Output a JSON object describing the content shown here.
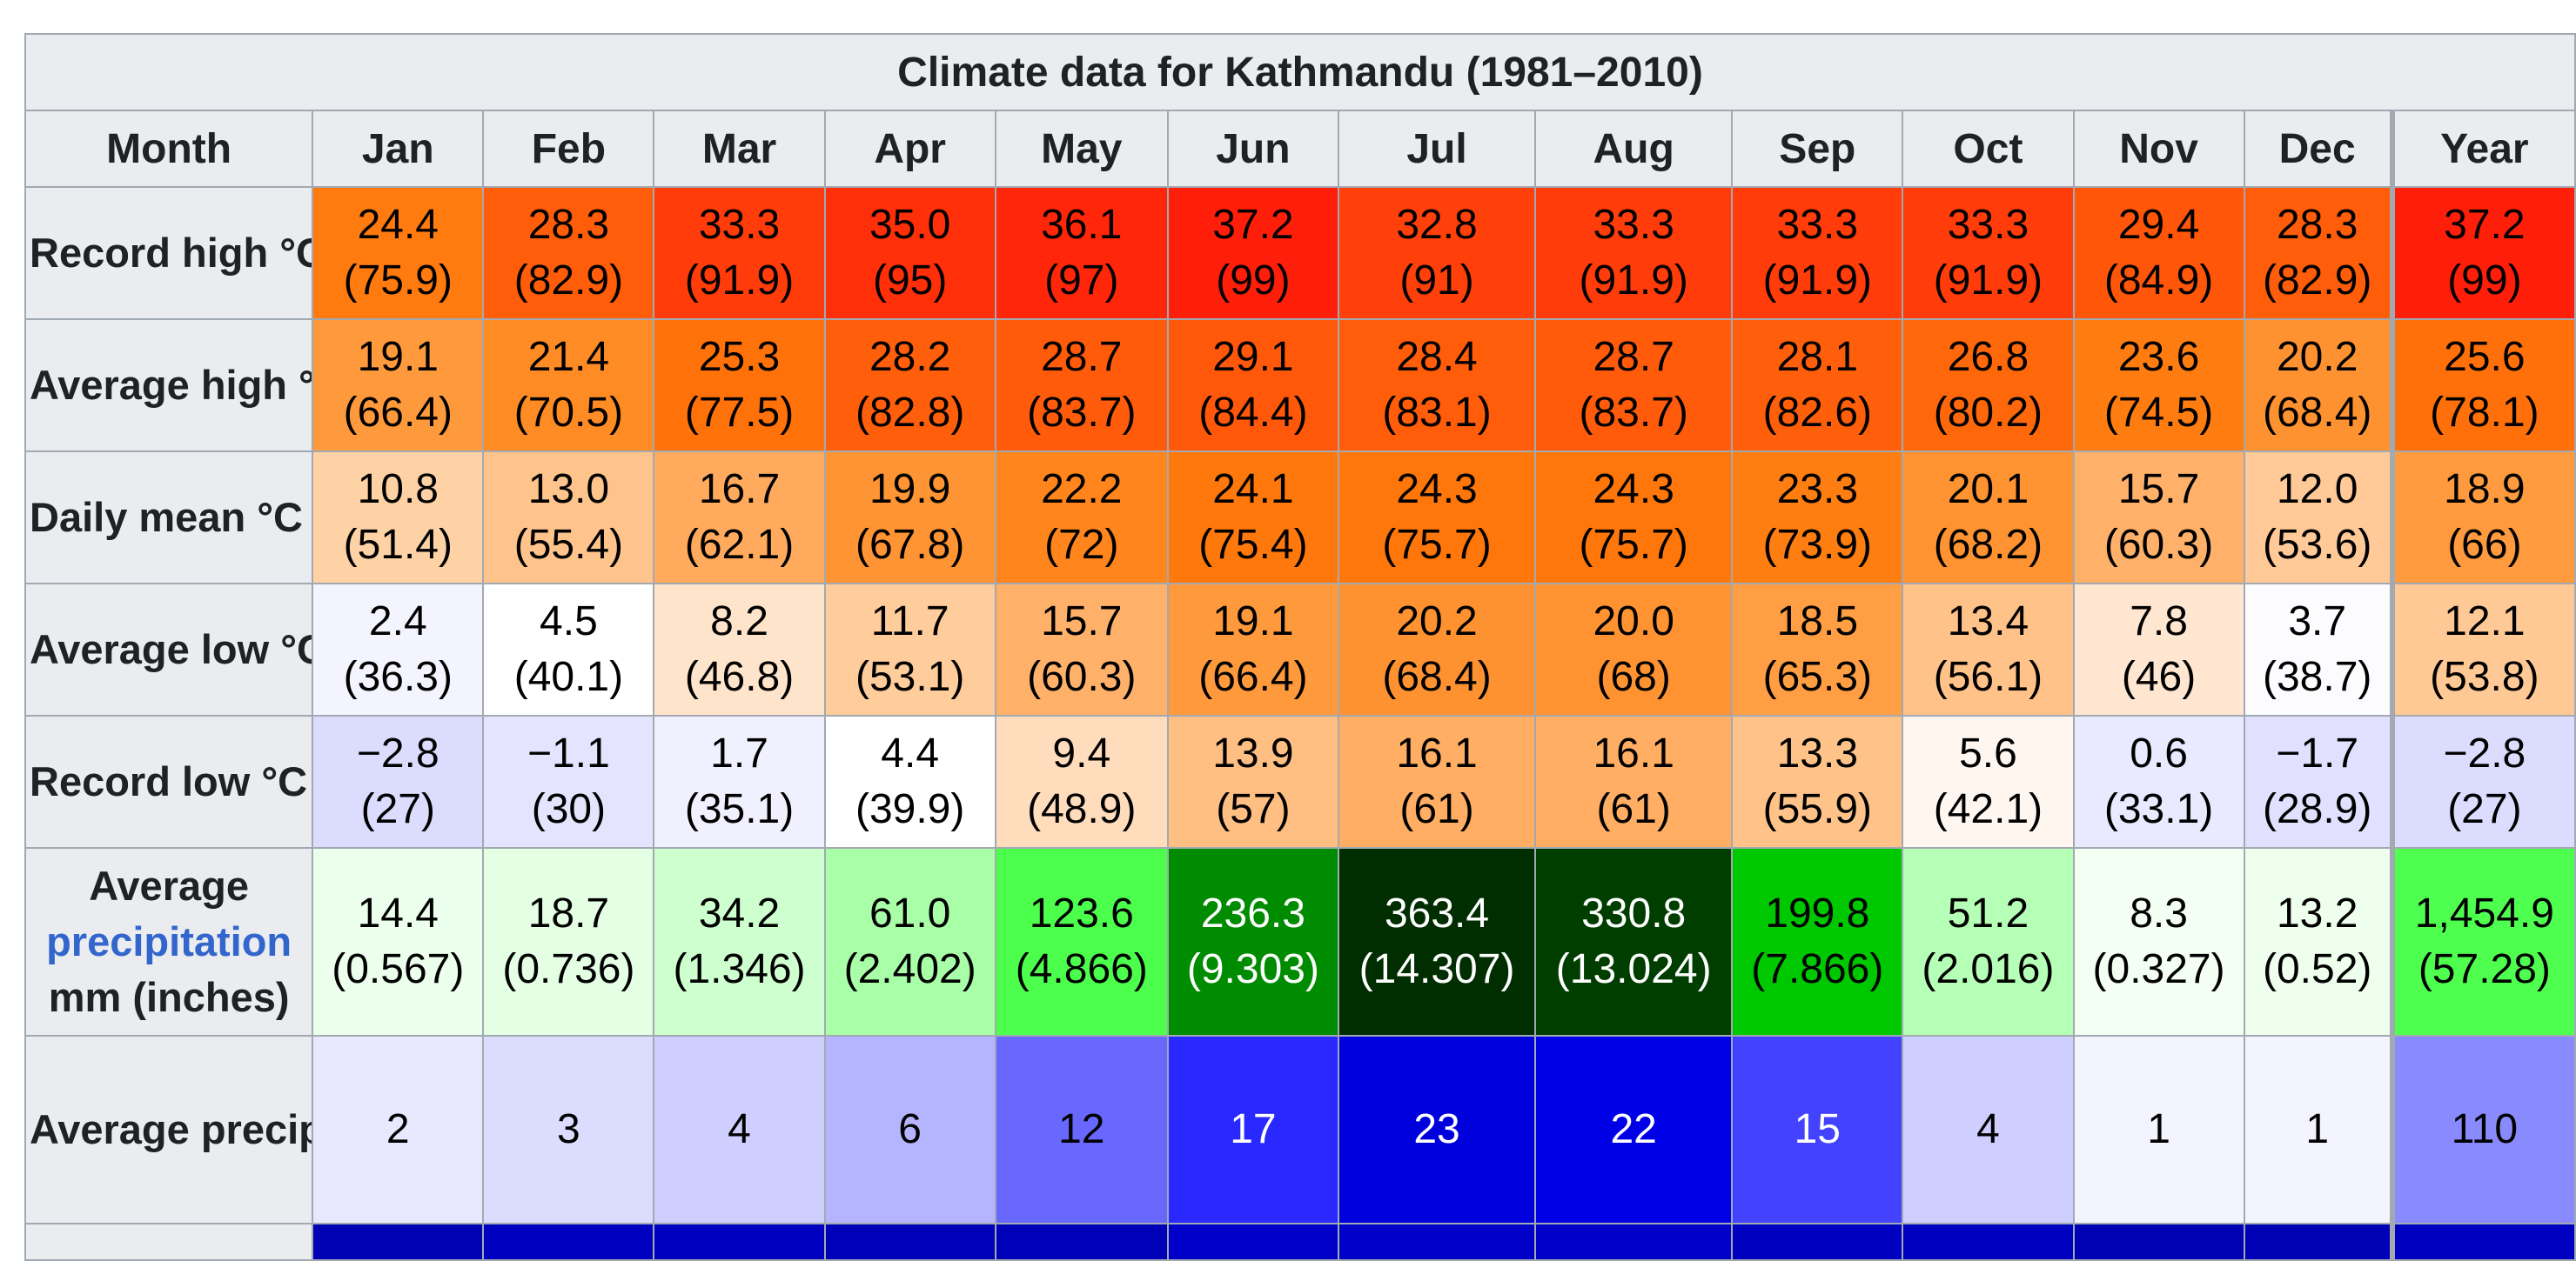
{
  "title": "Climate data for Kathmandu (1981–2010)",
  "header": {
    "month_label": "Month",
    "columns": [
      "Jan",
      "Feb",
      "Mar",
      "Apr",
      "May",
      "Jun",
      "Jul",
      "Aug",
      "Sep",
      "Oct",
      "Nov",
      "Dec",
      "Year"
    ]
  },
  "rows": [
    {
      "label": "Record high °C (°F)",
      "cells": [
        {
          "v": "24.4",
          "s": "(75.9)",
          "bg": "#ff7a0f",
          "fg": "#000000"
        },
        {
          "v": "28.3",
          "s": "(82.9)",
          "bg": "#ff5d0a",
          "fg": "#000000"
        },
        {
          "v": "33.3",
          "s": "(91.9)",
          "bg": "#ff3c0a",
          "fg": "#000000"
        },
        {
          "v": "35.0",
          "s": "(95)",
          "bg": "#ff2f0a",
          "fg": "#000000"
        },
        {
          "v": "36.1",
          "s": "(97)",
          "bg": "#ff260a",
          "fg": "#000000"
        },
        {
          "v": "37.2",
          "s": "(99)",
          "bg": "#ff1e0a",
          "fg": "#000000"
        },
        {
          "v": "32.8",
          "s": "(91)",
          "bg": "#ff400a",
          "fg": "#000000"
        },
        {
          "v": "33.3",
          "s": "(91.9)",
          "bg": "#ff3c0a",
          "fg": "#000000"
        },
        {
          "v": "33.3",
          "s": "(91.9)",
          "bg": "#ff3c0a",
          "fg": "#000000"
        },
        {
          "v": "33.3",
          "s": "(91.9)",
          "bg": "#ff3c0a",
          "fg": "#000000"
        },
        {
          "v": "29.4",
          "s": "(84.9)",
          "bg": "#ff560a",
          "fg": "#000000"
        },
        {
          "v": "28.3",
          "s": "(82.9)",
          "bg": "#ff5d0a",
          "fg": "#000000"
        },
        {
          "v": "37.2",
          "s": "(99)",
          "bg": "#ff1e0a",
          "fg": "#000000"
        }
      ]
    },
    {
      "label": "Average high °C (°F)",
      "cells": [
        {
          "v": "19.1",
          "s": "(66.4)",
          "bg": "#ff9a3c",
          "fg": "#000000"
        },
        {
          "v": "21.4",
          "s": "(70.5)",
          "bg": "#ff8b24",
          "fg": "#000000"
        },
        {
          "v": "25.3",
          "s": "(77.5)",
          "bg": "#ff720a",
          "fg": "#000000"
        },
        {
          "v": "28.2",
          "s": "(82.8)",
          "bg": "#ff5e0a",
          "fg": "#000000"
        },
        {
          "v": "28.7",
          "s": "(83.7)",
          "bg": "#ff5b0a",
          "fg": "#000000"
        },
        {
          "v": "29.1",
          "s": "(84.4)",
          "bg": "#ff580a",
          "fg": "#000000"
        },
        {
          "v": "28.4",
          "s": "(83.1)",
          "bg": "#ff5d0a",
          "fg": "#000000"
        },
        {
          "v": "28.7",
          "s": "(83.7)",
          "bg": "#ff5b0a",
          "fg": "#000000"
        },
        {
          "v": "28.1",
          "s": "(82.6)",
          "bg": "#ff5f0a",
          "fg": "#000000"
        },
        {
          "v": "26.8",
          "s": "(80.2)",
          "bg": "#ff680a",
          "fg": "#000000"
        },
        {
          "v": "23.6",
          "s": "(74.5)",
          "bg": "#ff7d10",
          "fg": "#000000"
        },
        {
          "v": "20.2",
          "s": "(68.4)",
          "bg": "#ff9230",
          "fg": "#000000"
        },
        {
          "v": "25.6",
          "s": "(78.1)",
          "bg": "#ff700a",
          "fg": "#000000"
        }
      ]
    },
    {
      "label": "Daily mean °C (°F)",
      "cells": [
        {
          "v": "10.8",
          "s": "(51.4)",
          "bg": "#ffd2a6",
          "fg": "#000000"
        },
        {
          "v": "13.0",
          "s": "(55.4)",
          "bg": "#ffc48c",
          "fg": "#000000"
        },
        {
          "v": "16.7",
          "s": "(62.1)",
          "bg": "#ffaa5c",
          "fg": "#000000"
        },
        {
          "v": "19.9",
          "s": "(67.8)",
          "bg": "#ff9434",
          "fg": "#000000"
        },
        {
          "v": "22.2",
          "s": "(72)",
          "bg": "#ff851c",
          "fg": "#000000"
        },
        {
          "v": "24.1",
          "s": "(75.4)",
          "bg": "#ff780c",
          "fg": "#000000"
        },
        {
          "v": "24.3",
          "s": "(75.7)",
          "bg": "#ff770b",
          "fg": "#000000"
        },
        {
          "v": "24.3",
          "s": "(75.7)",
          "bg": "#ff770b",
          "fg": "#000000"
        },
        {
          "v": "23.3",
          "s": "(73.9)",
          "bg": "#ff7e12",
          "fg": "#000000"
        },
        {
          "v": "20.1",
          "s": "(68.2)",
          "bg": "#ff9332",
          "fg": "#000000"
        },
        {
          "v": "15.7",
          "s": "(60.3)",
          "bg": "#ffb16a",
          "fg": "#000000"
        },
        {
          "v": "12.0",
          "s": "(53.6)",
          "bg": "#ffca98",
          "fg": "#000000"
        },
        {
          "v": "18.9",
          "s": "(66)",
          "bg": "#ff9b3e",
          "fg": "#000000"
        }
      ]
    },
    {
      "label": "Average low °C (°F)",
      "cells": [
        {
          "v": "2.4",
          "s": "(36.3)",
          "bg": "#f4f4ff",
          "fg": "#000000"
        },
        {
          "v": "4.5",
          "s": "(40.1)",
          "bg": "#ffffff",
          "fg": "#000000"
        },
        {
          "v": "8.2",
          "s": "(46.8)",
          "bg": "#ffe4cc",
          "fg": "#000000"
        },
        {
          "v": "11.7",
          "s": "(53.1)",
          "bg": "#ffcc9c",
          "fg": "#000000"
        },
        {
          "v": "15.7",
          "s": "(60.3)",
          "bg": "#ffb16a",
          "fg": "#000000"
        },
        {
          "v": "19.1",
          "s": "(66.4)",
          "bg": "#ff9a3c",
          "fg": "#000000"
        },
        {
          "v": "20.2",
          "s": "(68.4)",
          "bg": "#ff9230",
          "fg": "#000000"
        },
        {
          "v": "20.0",
          "s": "(68)",
          "bg": "#ff9332",
          "fg": "#000000"
        },
        {
          "v": "18.5",
          "s": "(65.3)",
          "bg": "#ff9e42",
          "fg": "#000000"
        },
        {
          "v": "13.4",
          "s": "(56.1)",
          "bg": "#ffc288",
          "fg": "#000000"
        },
        {
          "v": "7.8",
          "s": "(46)",
          "bg": "#ffe6d0",
          "fg": "#000000"
        },
        {
          "v": "3.7",
          "s": "(38.7)",
          "bg": "#fcfcff",
          "fg": "#000000"
        },
        {
          "v": "12.1",
          "s": "(53.8)",
          "bg": "#ffc996",
          "fg": "#000000"
        }
      ]
    },
    {
      "label": "Record low °C (°F)",
      "cells": [
        {
          "v": "−2.8",
          "s": "(27)",
          "bg": "#dcdcff",
          "fg": "#000000"
        },
        {
          "v": "−1.1",
          "s": "(30)",
          "bg": "#e4e4ff",
          "fg": "#000000"
        },
        {
          "v": "1.7",
          "s": "(35.1)",
          "bg": "#f0f0ff",
          "fg": "#000000"
        },
        {
          "v": "4.4",
          "s": "(39.9)",
          "bg": "#ffffff",
          "fg": "#000000"
        },
        {
          "v": "9.4",
          "s": "(48.9)",
          "bg": "#ffdcbc",
          "fg": "#000000"
        },
        {
          "v": "13.9",
          "s": "(57)",
          "bg": "#ffbe82",
          "fg": "#000000"
        },
        {
          "v": "16.1",
          "s": "(61)",
          "bg": "#ffae64",
          "fg": "#000000"
        },
        {
          "v": "16.1",
          "s": "(61)",
          "bg": "#ffae64",
          "fg": "#000000"
        },
        {
          "v": "13.3",
          "s": "(55.9)",
          "bg": "#ffc38a",
          "fg": "#000000"
        },
        {
          "v": "5.6",
          "s": "(42.1)",
          "bg": "#fff6f0",
          "fg": "#000000"
        },
        {
          "v": "0.6",
          "s": "(33.1)",
          "bg": "#e9e9ff",
          "fg": "#000000"
        },
        {
          "v": "−1.7",
          "s": "(28.9)",
          "bg": "#e1e1ff",
          "fg": "#000000"
        },
        {
          "v": "−2.8",
          "s": "(27)",
          "bg": "#dcdcff",
          "fg": "#000000"
        }
      ]
    },
    {
      "label_top": "Average",
      "label_link": "precipitation",
      "label_bottom": "mm (inches)",
      "cells": [
        {
          "v": "14.4",
          "s": "(0.567)",
          "bg": "#ecffec",
          "fg": "#000000"
        },
        {
          "v": "18.7",
          "s": "(0.736)",
          "bg": "#e4ffe4",
          "fg": "#000000"
        },
        {
          "v": "34.2",
          "s": "(1.346)",
          "bg": "#ceffce",
          "fg": "#000000"
        },
        {
          "v": "61.0",
          "s": "(2.402)",
          "bg": "#a8ffa8",
          "fg": "#000000"
        },
        {
          "v": "123.6",
          "s": "(4.866)",
          "bg": "#4dff4d",
          "fg": "#000000"
        },
        {
          "v": "236.3",
          "s": "(9.303)",
          "bg": "#008c00",
          "fg": "#ffffff"
        },
        {
          "v": "363.4",
          "s": "(14.307)",
          "bg": "#002e00",
          "fg": "#ffffff"
        },
        {
          "v": "330.8",
          "s": "(13.024)",
          "bg": "#003e00",
          "fg": "#ffffff"
        },
        {
          "v": "199.8",
          "s": "(7.866)",
          "bg": "#00c800",
          "fg": "#000000"
        },
        {
          "v": "51.2",
          "s": "(2.016)",
          "bg": "#b6ffb6",
          "fg": "#000000"
        },
        {
          "v": "8.3",
          "s": "(0.327)",
          "bg": "#f4fff4",
          "fg": "#000000"
        },
        {
          "v": "13.2",
          "s": "(0.52)",
          "bg": "#eeffee",
          "fg": "#000000"
        },
        {
          "v": "1,454.9",
          "s": "(57.28)",
          "bg": "#4fff4f",
          "fg": "#000000"
        }
      ]
    },
    {
      "label": "Average precipitation days",
      "cells": [
        {
          "v": "2",
          "bg": "#e8e8ff",
          "fg": "#000000"
        },
        {
          "v": "3",
          "bg": "#dcdcff",
          "fg": "#000000"
        },
        {
          "v": "4",
          "bg": "#cfcfff",
          "fg": "#000000"
        },
        {
          "v": "6",
          "bg": "#b4b4ff",
          "fg": "#000000"
        },
        {
          "v": "12",
          "bg": "#6868ff",
          "fg": "#000000"
        },
        {
          "v": "17",
          "bg": "#2828ff",
          "fg": "#ffffff"
        },
        {
          "v": "23",
          "bg": "#0000dc",
          "fg": "#ffffff"
        },
        {
          "v": "22",
          "bg": "#0000e6",
          "fg": "#ffffff"
        },
        {
          "v": "15",
          "bg": "#4242ff",
          "fg": "#ffffff"
        },
        {
          "v": "4",
          "bg": "#cfcfff",
          "fg": "#000000"
        },
        {
          "v": "1",
          "bg": "#f4f4ff",
          "fg": "#000000"
        },
        {
          "v": "1",
          "bg": "#f4f4ff",
          "fg": "#000000"
        },
        {
          "v": "110",
          "bg": "#8a8aff",
          "fg": "#000000"
        }
      ]
    }
  ],
  "cut_row_colors": [
    "#0000b4",
    "#0000c0",
    "#0000c0",
    "#0000b8",
    "#0000b8",
    "#0000c8",
    "#0000c8",
    "#0000c8",
    "#0000c0",
    "#0000c0",
    "#0000b4",
    "#0000b4",
    "#0000c0"
  ]
}
